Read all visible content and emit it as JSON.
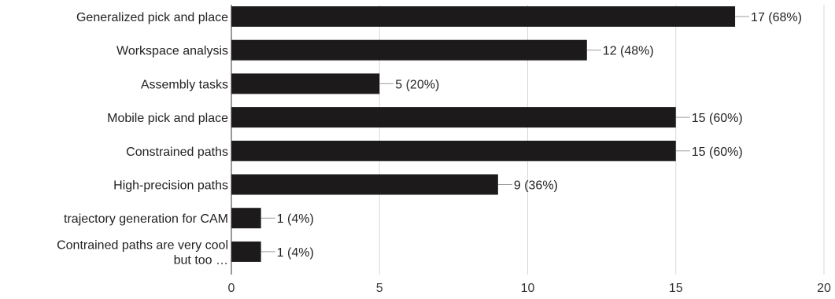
{
  "chart_data": {
    "type": "bar",
    "orientation": "horizontal",
    "title": "",
    "xlabel": "",
    "ylabel": "",
    "categories": [
      [
        "Generalized pick and place"
      ],
      [
        "Workspace analysis"
      ],
      [
        "Assembly tasks"
      ],
      [
        "Mobile pick and place"
      ],
      [
        "Constrained paths"
      ],
      [
        "High-precision paths"
      ],
      [
        "trajectory generation for CAM"
      ],
      [
        "Contrained paths are very cool",
        "but too …"
      ]
    ],
    "values": [
      17,
      12,
      5,
      15,
      15,
      9,
      1,
      1
    ],
    "data_labels": [
      "17 (68%)",
      "12 (48%)",
      "5 (20%)",
      "15 (60%)",
      "15 (60%)",
      "9 (36%)",
      "1 (4%)",
      "1 (4%)"
    ],
    "xlim": [
      0,
      20
    ],
    "x_ticks": [
      0,
      5,
      10,
      15,
      20
    ],
    "x_tick_labels": [
      "0",
      "5",
      "10",
      "15",
      "20"
    ],
    "grid": true,
    "legend": "none",
    "bar_color": "#1c1a1b",
    "grid_color": "#d9d9d9",
    "axis_color": "#333333",
    "leader_color": "#9e9e9e"
  }
}
